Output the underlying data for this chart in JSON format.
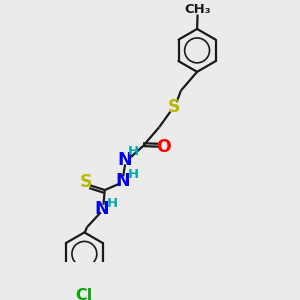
{
  "bg_color": "#ebebeb",
  "bond_color": "#1a1a1a",
  "S_color": "#b8b800",
  "O_color": "#ff0000",
  "N_color": "#0000ee",
  "H_color": "#00aaaa",
  "Cl_color": "#00aa00",
  "line_width": 1.6,
  "font_size": 10.5,
  "xlim": [
    0,
    10
  ],
  "ylim": [
    0,
    10
  ]
}
